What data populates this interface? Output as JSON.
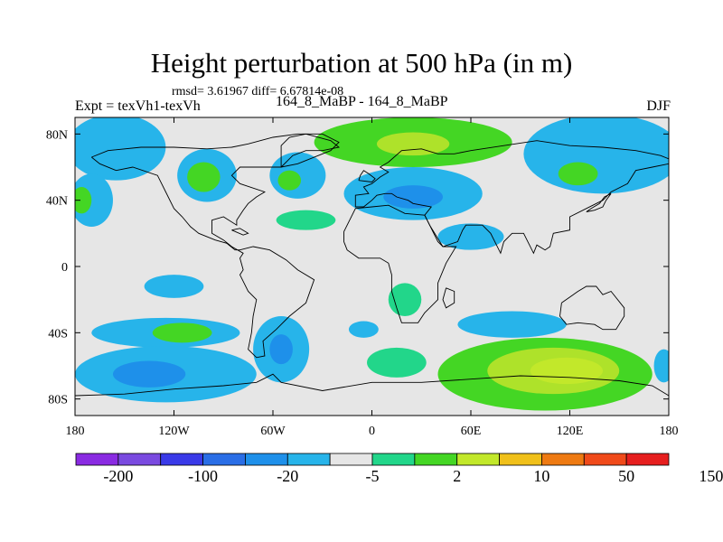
{
  "chart_data": {
    "type": "heatmap",
    "title": "Height perturbation at 500 hPa (in m)",
    "stats_line": "rmsd= 3.61967 diff= 6.67814e-08",
    "left_label": "Expt = texVh1-texVh",
    "center_label": "164_8_MaBP - 164_8_MaBP",
    "right_label": "DJF",
    "xlim": [
      -180,
      180
    ],
    "ylim": [
      -90,
      90
    ],
    "x_ticks": [
      {
        "value": -180,
        "label": "180"
      },
      {
        "value": -120,
        "label": "120W"
      },
      {
        "value": -60,
        "label": "60W"
      },
      {
        "value": 0,
        "label": "0"
      },
      {
        "value": 60,
        "label": "60E"
      },
      {
        "value": 120,
        "label": "120E"
      },
      {
        "value": 180,
        "label": "180"
      }
    ],
    "y_ticks": [
      {
        "value": 80,
        "label": "80N"
      },
      {
        "value": 40,
        "label": "40N"
      },
      {
        "value": 0,
        "label": "0"
      },
      {
        "value": -40,
        "label": "40S"
      },
      {
        "value": -80,
        "label": "80S"
      }
    ],
    "colorbar": {
      "colors": [
        "#8a2be2",
        "#7a4ae0",
        "#3a3ae8",
        "#2a6ee6",
        "#1e90ea",
        "#27b4ea",
        "#e6e6e6",
        "#22d68a",
        "#44d624",
        "#c2e82a",
        "#f0c01a",
        "#ee7a12",
        "#f04a1a",
        "#e61e1e"
      ],
      "labels": [
        {
          "index": 1,
          "text": "-200"
        },
        {
          "index": 3,
          "text": "-100"
        },
        {
          "index": 5,
          "text": "-20"
        },
        {
          "index": 7,
          "text": "-5"
        },
        {
          "index": 9,
          "text": "2"
        },
        {
          "index": 11,
          "text": "10"
        },
        {
          "index": 13,
          "text": "50"
        },
        {
          "index": 15,
          "text": "150"
        }
      ]
    },
    "blobs": [
      {
        "lon": -155,
        "lat": 72,
        "rx": 30,
        "ry": 20,
        "level": 5
      },
      {
        "lon": -170,
        "lat": 40,
        "rx": 13,
        "ry": 16,
        "level": 5
      },
      {
        "lon": -176,
        "lat": 40,
        "rx": 6,
        "ry": 8,
        "level": 3
      },
      {
        "lon": -100,
        "lat": 55,
        "rx": 18,
        "ry": 16,
        "level": 5
      },
      {
        "lon": -102,
        "lat": 54,
        "rx": 10,
        "ry": 9,
        "level": 3
      },
      {
        "lon": -45,
        "lat": 55,
        "rx": 17,
        "ry": 14,
        "level": 5
      },
      {
        "lon": -50,
        "lat": 52,
        "rx": 7,
        "ry": 6,
        "level": 3
      },
      {
        "lon": 25,
        "lat": 75,
        "rx": 60,
        "ry": 15,
        "level": 3
      },
      {
        "lon": 25,
        "lat": 74,
        "rx": 22,
        "ry": 7,
        "level": 2
      },
      {
        "lon": 25,
        "lat": 44,
        "rx": 42,
        "ry": 16,
        "level": 5
      },
      {
        "lon": 25,
        "lat": 42,
        "rx": 18,
        "ry": 7,
        "level": 6
      },
      {
        "lon": 140,
        "lat": 68,
        "rx": 48,
        "ry": 24,
        "level": 5
      },
      {
        "lon": 125,
        "lat": 56,
        "rx": 12,
        "ry": 7,
        "level": 3
      },
      {
        "lon": 60,
        "lat": 18,
        "rx": 20,
        "ry": 8,
        "level": 5
      },
      {
        "lon": -40,
        "lat": 28,
        "rx": 18,
        "ry": 6,
        "level": 4
      },
      {
        "lon": -120,
        "lat": -12,
        "rx": 18,
        "ry": 7,
        "level": 5
      },
      {
        "lon": 20,
        "lat": -20,
        "rx": 10,
        "ry": 10,
        "level": 4
      },
      {
        "lon": -5,
        "lat": -38,
        "rx": 9,
        "ry": 5,
        "level": 5
      },
      {
        "lon": 85,
        "lat": -35,
        "rx": 33,
        "ry": 8,
        "level": 5
      },
      {
        "lon": -125,
        "lat": -40,
        "rx": 45,
        "ry": 9,
        "level": 5
      },
      {
        "lon": -115,
        "lat": -40,
        "rx": 18,
        "ry": 6,
        "level": 3
      },
      {
        "lon": -125,
        "lat": -65,
        "rx": 55,
        "ry": 17,
        "level": 5
      },
      {
        "lon": -135,
        "lat": -65,
        "rx": 22,
        "ry": 8,
        "level": 6
      },
      {
        "lon": -55,
        "lat": -50,
        "rx": 17,
        "ry": 20,
        "level": 5
      },
      {
        "lon": -55,
        "lat": -50,
        "rx": 7,
        "ry": 9,
        "level": 6
      },
      {
        "lon": 15,
        "lat": -58,
        "rx": 18,
        "ry": 9,
        "level": 4
      },
      {
        "lon": 105,
        "lat": -65,
        "rx": 65,
        "ry": 22,
        "level": 3
      },
      {
        "lon": 110,
        "lat": -63,
        "rx": 40,
        "ry": 14,
        "level": 2
      },
      {
        "lon": 118,
        "lat": -63,
        "rx": 22,
        "ry": 8,
        "level": 1
      },
      {
        "lon": 177,
        "lat": -60,
        "rx": 6,
        "ry": 10,
        "level": 5
      }
    ],
    "coastlines": [
      [
        [
          -170,
          66
        ],
        [
          -160,
          70
        ],
        [
          -140,
          72
        ],
        [
          -120,
          72
        ],
        [
          -100,
          71
        ],
        [
          -85,
          72
        ],
        [
          -75,
          74
        ],
        [
          -60,
          78
        ],
        [
          -45,
          80
        ],
        [
          -30,
          80
        ],
        [
          -20,
          75
        ],
        [
          -25,
          70
        ],
        [
          -45,
          62
        ],
        [
          -55,
          60
        ],
        [
          -65,
          60
        ],
        [
          -80,
          60
        ],
        [
          -85,
          55
        ],
        [
          -80,
          50
        ],
        [
          -65,
          45
        ],
        [
          -70,
          42
        ],
        [
          -75,
          38
        ],
        [
          -78,
          34
        ],
        [
          -82,
          28
        ],
        [
          -82,
          25
        ],
        [
          -90,
          30
        ],
        [
          -97,
          28
        ],
        [
          -97,
          20
        ],
        [
          -90,
          16
        ],
        [
          -85,
          12
        ],
        [
          -78,
          8
        ],
        [
          -80,
          5
        ],
        [
          -78,
          -2
        ],
        [
          -80,
          -5
        ],
        [
          -75,
          -15
        ],
        [
          -70,
          -20
        ],
        [
          -72,
          -30
        ],
        [
          -73,
          -40
        ],
        [
          -75,
          -50
        ],
        [
          -70,
          -55
        ],
        [
          -65,
          -54
        ],
        [
          -66,
          -45
        ],
        [
          -58,
          -38
        ],
        [
          -50,
          -30
        ],
        [
          -40,
          -22
        ],
        [
          -35,
          -8
        ],
        [
          -45,
          -2
        ],
        [
          -52,
          4
        ],
        [
          -62,
          10
        ],
        [
          -72,
          12
        ],
        [
          -80,
          10
        ],
        [
          -83,
          10
        ],
        [
          -88,
          14
        ],
        [
          -95,
          16
        ],
        [
          -105,
          20
        ],
        [
          -110,
          24
        ],
        [
          -115,
          30
        ],
        [
          -120,
          35
        ],
        [
          -125,
          45
        ],
        [
          -130,
          55
        ],
        [
          -145,
          60
        ],
        [
          -155,
          58
        ],
        [
          -165,
          62
        ],
        [
          -170,
          66
        ]
      ],
      [
        [
          -10,
          36
        ],
        [
          -10,
          43
        ],
        [
          -2,
          44
        ],
        [
          -5,
          48
        ],
        [
          0,
          50
        ],
        [
          5,
          54
        ],
        [
          10,
          57
        ],
        [
          5,
          60
        ],
        [
          10,
          63
        ],
        [
          18,
          70
        ],
        [
          30,
          71
        ],
        [
          40,
          68
        ],
        [
          50,
          68
        ],
        [
          60,
          70
        ],
        [
          80,
          73
        ],
        [
          100,
          76
        ],
        [
          120,
          73
        ],
        [
          140,
          72
        ],
        [
          160,
          70
        ],
        [
          175,
          67
        ],
        [
          180,
          65
        ],
        [
          180,
          62
        ],
        [
          170,
          60
        ],
        [
          160,
          58
        ],
        [
          155,
          50
        ],
        [
          145,
          45
        ],
        [
          140,
          40
        ],
        [
          130,
          35
        ],
        [
          120,
          30
        ],
        [
          120,
          22
        ],
        [
          110,
          20
        ],
        [
          108,
          12
        ],
        [
          105,
          10
        ],
        [
          100,
          13
        ],
        [
          98,
          8
        ],
        [
          92,
          20
        ],
        [
          85,
          20
        ],
        [
          80,
          15
        ],
        [
          78,
          8
        ],
        [
          72,
          20
        ],
        [
          67,
          25
        ],
        [
          57,
          25
        ],
        [
          55,
          22
        ],
        [
          52,
          15
        ],
        [
          43,
          12
        ],
        [
          40,
          15
        ],
        [
          35,
          25
        ],
        [
          32,
          31
        ],
        [
          36,
          36
        ],
        [
          25,
          38
        ],
        [
          22,
          40
        ],
        [
          15,
          42
        ],
        [
          12,
          44
        ],
        [
          8,
          44
        ],
        [
          3,
          43
        ],
        [
          0,
          40
        ],
        [
          -5,
          36
        ],
        [
          -10,
          36
        ]
      ],
      [
        [
          -17,
          21
        ],
        [
          -10,
          35
        ],
        [
          0,
          36
        ],
        [
          10,
          37
        ],
        [
          20,
          32
        ],
        [
          32,
          31
        ],
        [
          35,
          25
        ],
        [
          43,
          12
        ],
        [
          51,
          12
        ],
        [
          45,
          2
        ],
        [
          40,
          -10
        ],
        [
          40,
          -20
        ],
        [
          35,
          -25
        ],
        [
          32,
          -28
        ],
        [
          28,
          -34
        ],
        [
          18,
          -34
        ],
        [
          15,
          -25
        ],
        [
          12,
          -15
        ],
        [
          12,
          -5
        ],
        [
          10,
          2
        ],
        [
          5,
          5
        ],
        [
          -8,
          5
        ],
        [
          -15,
          10
        ],
        [
          -17,
          15
        ],
        [
          -17,
          21
        ]
      ],
      [
        [
          115,
          -22
        ],
        [
          114,
          -30
        ],
        [
          118,
          -35
        ],
        [
          125,
          -34
        ],
        [
          135,
          -35
        ],
        [
          140,
          -38
        ],
        [
          148,
          -38
        ],
        [
          153,
          -30
        ],
        [
          153,
          -25
        ],
        [
          145,
          -15
        ],
        [
          140,
          -17
        ],
        [
          136,
          -12
        ],
        [
          130,
          -12
        ],
        [
          125,
          -15
        ],
        [
          115,
          -22
        ]
      ],
      [
        [
          -180,
          -78
        ],
        [
          -150,
          -77
        ],
        [
          -120,
          -74
        ],
        [
          -90,
          -72
        ],
        [
          -70,
          -70
        ],
        [
          -60,
          -65
        ],
        [
          -55,
          -70
        ],
        [
          -30,
          -75
        ],
        [
          0,
          -70
        ],
        [
          30,
          -70
        ],
        [
          60,
          -68
        ],
        [
          90,
          -66
        ],
        [
          120,
          -67
        ],
        [
          150,
          -69
        ],
        [
          170,
          -72
        ],
        [
          180,
          -78
        ]
      ],
      [
        [
          -55,
          60
        ],
        [
          -48,
          67
        ],
        [
          -40,
          70
        ],
        [
          -30,
          70
        ],
        [
          -20,
          72
        ],
        [
          -25,
          76
        ],
        [
          -40,
          80
        ],
        [
          -50,
          78
        ],
        [
          -55,
          73
        ],
        [
          -55,
          60
        ]
      ],
      [
        [
          -8,
          52
        ],
        [
          0,
          51
        ],
        [
          2,
          53
        ],
        [
          -2,
          56
        ],
        [
          -5,
          58
        ],
        [
          -7,
          55
        ],
        [
          -8,
          52
        ]
      ],
      [
        [
          130,
          33
        ],
        [
          135,
          34
        ],
        [
          140,
          36
        ],
        [
          142,
          40
        ],
        [
          145,
          44
        ],
        [
          141,
          42
        ],
        [
          138,
          38
        ],
        [
          133,
          35
        ],
        [
          130,
          33
        ]
      ],
      [
        [
          45,
          -13
        ],
        [
          50,
          -15
        ],
        [
          50,
          -22
        ],
        [
          45,
          -25
        ],
        [
          43,
          -20
        ],
        [
          45,
          -13
        ]
      ],
      [
        [
          -85,
          22
        ],
        [
          -80,
          23
        ],
        [
          -75,
          20
        ],
        [
          -78,
          19
        ],
        [
          -85,
          22
        ]
      ]
    ]
  }
}
